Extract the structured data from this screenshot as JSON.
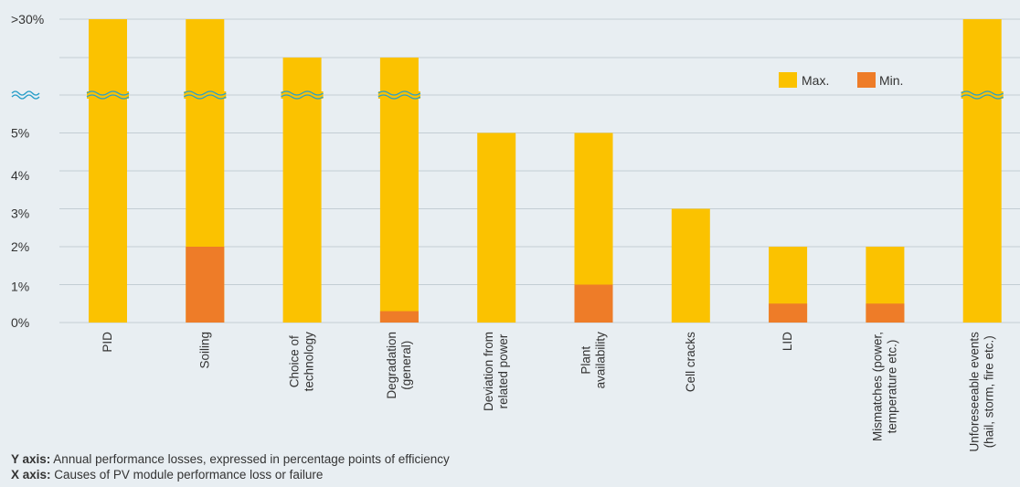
{
  "chart_data": {
    "type": "bar",
    "stacked": false,
    "y_ticks": [
      "0%",
      "1%",
      "2%",
      "3%",
      "4%",
      "5%",
      ">30%"
    ],
    "y_break": true,
    "categories": [
      "PID",
      "Soiling",
      "Choice of technology",
      "Degradation (general)",
      "Deviation from related power",
      "Plant availability",
      "Cell cracks",
      "LID",
      "Mismatches (power, temperature etc.)",
      "Unforeseeable events (hail, storm, fire etc.)"
    ],
    "category_lines": [
      [
        "PID"
      ],
      [
        "Soiling"
      ],
      [
        "Choice of",
        "technology"
      ],
      [
        "Degradation",
        "(general)"
      ],
      [
        "Deviation from",
        "related power"
      ],
      [
        "Plant",
        "availability"
      ],
      [
        "Cell cracks"
      ],
      [
        "LID"
      ],
      [
        "Mismatches (power,",
        "temperature etc.)"
      ],
      [
        "Unforeseeable events",
        "(hail, storm, fire etc.)"
      ]
    ],
    "series": [
      {
        "name": "Max.",
        "color": "#fbc200",
        "values": [
          ">30%",
          ">30%",
          "above break",
          "above break",
          5,
          5,
          3,
          2,
          2,
          ">30%"
        ]
      },
      {
        "name": "Min.",
        "color": "#ee7c28",
        "values": [
          0,
          2,
          0,
          0.3,
          0,
          1,
          0,
          0.5,
          0.5,
          0
        ]
      }
    ],
    "legend_position": "top-right",
    "grid": true
  },
  "axis_notes": {
    "y_label": "Y axis:",
    "y_text": " Annual performance losses, expressed in percentage points of efficiency",
    "x_label": "X axis:",
    "x_text": " Causes of PV module performance loss or failure"
  }
}
